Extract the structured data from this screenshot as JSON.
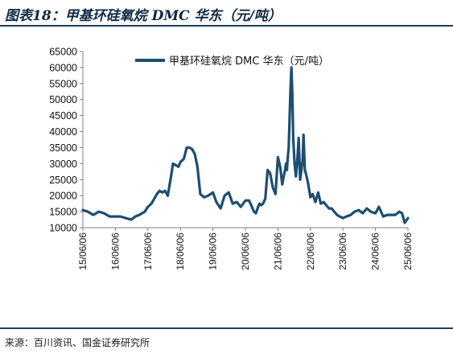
{
  "header": {
    "title": "图表18：甲基环硅氧烷 DMC 华东（元/吨）"
  },
  "footer": {
    "source": "来源：百川资讯、国金证券研究所"
  },
  "colors": {
    "series_line": "#1c4e73",
    "rule": "#1f3f5f",
    "axis": "#7f7f7f"
  },
  "chart_data": {
    "type": "line",
    "title": "",
    "xlabel": "",
    "ylabel": "",
    "legend_position": "top-center",
    "grid": false,
    "ylim": [
      10000,
      65000
    ],
    "y_ticks": [
      10000,
      15000,
      20000,
      25000,
      30000,
      35000,
      40000,
      45000,
      50000,
      55000,
      60000,
      65000
    ],
    "y_tick_labels": [
      "10000",
      "15000",
      "20000",
      "25000",
      "30000",
      "35000",
      "40000",
      "45000",
      "50000",
      "55000",
      "60000",
      "65000"
    ],
    "xlim": [
      "2015-06-06",
      "2025-06-06"
    ],
    "x_tick_labels": [
      "15/06/06",
      "16/06/06",
      "17/06/06",
      "18/06/06",
      "19/06/06",
      "20/06/06",
      "21/06/06",
      "22/06/06",
      "23/06/06",
      "24/06/06",
      "25/06/06"
    ],
    "series": [
      {
        "name": "甲基环硅氧烷 DMC 华东（元/吨）",
        "x": [
          "2015-06-06",
          "2015-08-01",
          "2015-10-01",
          "2015-12-01",
          "2016-02-01",
          "2016-04-01",
          "2016-06-06",
          "2016-08-01",
          "2016-10-01",
          "2016-12-01",
          "2017-01-15",
          "2017-03-01",
          "2017-05-01",
          "2017-06-06",
          "2017-07-15",
          "2017-08-15",
          "2017-09-15",
          "2017-10-15",
          "2017-11-15",
          "2017-12-15",
          "2018-01-15",
          "2018-02-15",
          "2018-03-15",
          "2018-04-15",
          "2018-05-15",
          "2018-06-06",
          "2018-07-15",
          "2018-08-15",
          "2018-09-15",
          "2018-10-15",
          "2018-11-15",
          "2018-12-15",
          "2019-01-15",
          "2019-03-01",
          "2019-04-15",
          "2019-06-06",
          "2019-07-15",
          "2019-09-01",
          "2019-10-15",
          "2019-12-01",
          "2020-01-15",
          "2020-03-01",
          "2020-04-15",
          "2020-06-06",
          "2020-07-15",
          "2020-08-10",
          "2020-09-10",
          "2020-10-01",
          "2020-10-20",
          "2020-11-10",
          "2020-12-01",
          "2020-12-20",
          "2021-01-15",
          "2021-02-10",
          "2021-03-10",
          "2021-04-10",
          "2021-05-10",
          "2021-06-06",
          "2021-07-01",
          "2021-07-25",
          "2021-08-10",
          "2021-08-25",
          "2021-09-05",
          "2021-09-15",
          "2021-09-25",
          "2021-10-05",
          "2021-10-15",
          "2021-10-25",
          "2021-11-05",
          "2021-11-15",
          "2021-11-25",
          "2021-12-10",
          "2021-12-25",
          "2022-01-10",
          "2022-01-25",
          "2022-02-10",
          "2022-02-25",
          "2022-03-10",
          "2022-03-20",
          "2022-04-05",
          "2022-04-20",
          "2022-05-10",
          "2022-06-06",
          "2022-07-01",
          "2022-08-01",
          "2022-09-01",
          "2022-10-01",
          "2022-11-01",
          "2022-12-01",
          "2023-01-01",
          "2023-02-01",
          "2023-03-01",
          "2023-04-01",
          "2023-05-01",
          "2023-06-06",
          "2023-07-15",
          "2023-09-01",
          "2023-10-15",
          "2023-12-01",
          "2024-01-15",
          "2024-03-01",
          "2024-04-15",
          "2024-06-06",
          "2024-07-15",
          "2024-09-01",
          "2024-10-15",
          "2024-12-01",
          "2025-01-15",
          "2025-03-01",
          "2025-04-01",
          "2025-05-01",
          "2025-06-06"
        ],
        "values": [
          15500,
          15000,
          14000,
          15000,
          14500,
          13500,
          13500,
          13500,
          13000,
          12500,
          13500,
          14000,
          15000,
          16500,
          17500,
          19000,
          20500,
          21500,
          21000,
          21500,
          20000,
          25000,
          30000,
          29500,
          29000,
          30500,
          31500,
          35000,
          35000,
          34500,
          33000,
          29000,
          20500,
          19500,
          20000,
          21000,
          18000,
          16000,
          20000,
          21000,
          17500,
          18000,
          16500,
          18500,
          18500,
          17000,
          15000,
          14500,
          16000,
          17500,
          17000,
          17500,
          19000,
          28000,
          27000,
          22500,
          20500,
          32000,
          29000,
          23500,
          26000,
          28000,
          30000,
          28000,
          32000,
          35000,
          44000,
          53000,
          60000,
          52000,
          38000,
          30000,
          26000,
          31000,
          38000,
          25000,
          28000,
          31000,
          39000,
          28000,
          26500,
          24000,
          19500,
          20500,
          18000,
          21000,
          17500,
          18000,
          17000,
          16000,
          16000,
          15000,
          14000,
          13500,
          13000,
          13500,
          14000,
          15000,
          15500,
          14500,
          16000,
          15000,
          14500,
          16500,
          13500,
          14000,
          14000,
          14000,
          15000,
          14500,
          11500,
          13000
        ]
      }
    ]
  }
}
